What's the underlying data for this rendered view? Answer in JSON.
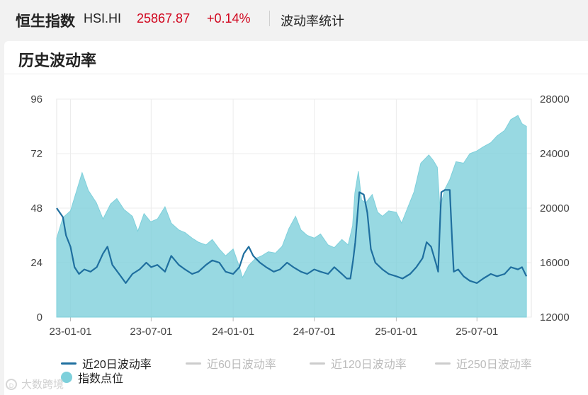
{
  "header": {
    "index_name": "恒生指数",
    "index_code": "HSI.HI",
    "price": "25867.87",
    "change": "+0.14%",
    "tab_label": "波动率统计"
  },
  "card": {
    "title": "历史波动率"
  },
  "legend": {
    "items": [
      {
        "label": "近20日波动率",
        "color": "#1f6f9f",
        "active": true
      },
      {
        "label": "近60日波动率",
        "color": "#cccccc",
        "active": false
      },
      {
        "label": "近120日波动率",
        "color": "#cccccc",
        "active": false
      },
      {
        "label": "近250日波动率",
        "color": "#cccccc",
        "active": false
      },
      {
        "label": "指数点位",
        "color": "#7ed0db",
        "active": true
      }
    ]
  },
  "watermark": {
    "text": "大数跨境"
  },
  "chart_data": {
    "type": "line",
    "x_tick_labels": [
      "23-01-01",
      "23-07-01",
      "24-01-01",
      "24-07-01",
      "25-01-01",
      "25-07-01"
    ],
    "x_ticks": [
      "2023-01-01",
      "2023-07-01",
      "2024-01-01",
      "2024-07-01",
      "2025-01-01",
      "2025-07-01"
    ],
    "xlim": [
      "2022-12-01",
      "2025-10-31"
    ],
    "y_left": {
      "ticks": [
        0,
        24,
        48,
        72,
        96
      ],
      "ylim": [
        0,
        96
      ]
    },
    "y_right": {
      "ticks": [
        12000,
        16000,
        20000,
        24000,
        28000
      ],
      "ylim": [
        12000,
        28000
      ]
    },
    "grid": true,
    "legend_position": "bottom",
    "series": [
      {
        "name": "近20日波动率",
        "axis": "left",
        "style": "line",
        "color": "#1f6f9f",
        "points": [
          [
            "2022-12-01",
            48
          ],
          [
            "2022-12-08",
            46
          ],
          [
            "2022-12-15",
            44
          ],
          [
            "2022-12-22",
            36
          ],
          [
            "2023-01-01",
            31
          ],
          [
            "2023-01-10",
            22
          ],
          [
            "2023-01-20",
            19
          ],
          [
            "2023-02-01",
            21
          ],
          [
            "2023-02-15",
            20
          ],
          [
            "2023-03-01",
            22
          ],
          [
            "2023-03-15",
            28
          ],
          [
            "2023-03-25",
            31
          ],
          [
            "2023-04-05",
            23
          ],
          [
            "2023-04-20",
            19
          ],
          [
            "2023-05-05",
            15
          ],
          [
            "2023-05-20",
            19
          ],
          [
            "2023-06-05",
            21
          ],
          [
            "2023-06-20",
            24
          ],
          [
            "2023-07-01",
            22
          ],
          [
            "2023-07-15",
            23
          ],
          [
            "2023-08-01",
            20
          ],
          [
            "2023-08-15",
            27
          ],
          [
            "2023-09-01",
            23
          ],
          [
            "2023-09-15",
            21
          ],
          [
            "2023-10-01",
            19
          ],
          [
            "2023-10-15",
            20
          ],
          [
            "2023-11-01",
            23
          ],
          [
            "2023-11-15",
            25
          ],
          [
            "2023-12-01",
            24
          ],
          [
            "2023-12-15",
            20
          ],
          [
            "2024-01-01",
            19
          ],
          [
            "2024-01-15",
            22
          ],
          [
            "2024-01-25",
            28
          ],
          [
            "2024-02-05",
            31
          ],
          [
            "2024-02-15",
            27
          ],
          [
            "2024-03-01",
            24
          ],
          [
            "2024-03-15",
            22
          ],
          [
            "2024-04-01",
            20
          ],
          [
            "2024-04-15",
            21
          ],
          [
            "2024-05-01",
            24
          ],
          [
            "2024-05-15",
            22
          ],
          [
            "2024-06-01",
            20
          ],
          [
            "2024-06-15",
            19
          ],
          [
            "2024-07-01",
            21
          ],
          [
            "2024-07-15",
            20
          ],
          [
            "2024-08-01",
            19
          ],
          [
            "2024-08-15",
            22
          ],
          [
            "2024-09-01",
            19
          ],
          [
            "2024-09-12",
            17
          ],
          [
            "2024-09-20",
            17
          ],
          [
            "2024-09-26",
            25
          ],
          [
            "2024-10-01",
            33
          ],
          [
            "2024-10-06",
            45
          ],
          [
            "2024-10-10",
            55
          ],
          [
            "2024-10-20",
            54
          ],
          [
            "2024-10-28",
            46
          ],
          [
            "2024-11-05",
            30
          ],
          [
            "2024-11-15",
            24
          ],
          [
            "2024-12-01",
            21
          ],
          [
            "2024-12-15",
            19
          ],
          [
            "2025-01-01",
            18
          ],
          [
            "2025-01-15",
            17
          ],
          [
            "2025-02-01",
            19
          ],
          [
            "2025-02-15",
            22
          ],
          [
            "2025-03-01",
            26
          ],
          [
            "2025-03-10",
            33
          ],
          [
            "2025-03-20",
            31
          ],
          [
            "2025-04-01",
            23
          ],
          [
            "2025-04-05",
            20
          ],
          [
            "2025-04-08",
            36
          ],
          [
            "2025-04-12",
            55
          ],
          [
            "2025-04-20",
            56
          ],
          [
            "2025-05-01",
            56
          ],
          [
            "2025-05-06",
            35
          ],
          [
            "2025-05-10",
            20
          ],
          [
            "2025-05-20",
            21
          ],
          [
            "2025-06-01",
            18
          ],
          [
            "2025-06-15",
            16
          ],
          [
            "2025-07-01",
            15
          ],
          [
            "2025-07-15",
            17
          ],
          [
            "2025-08-01",
            19
          ],
          [
            "2025-08-15",
            18
          ],
          [
            "2025-09-01",
            19
          ],
          [
            "2025-09-15",
            22
          ],
          [
            "2025-10-01",
            21
          ],
          [
            "2025-10-10",
            22
          ],
          [
            "2025-10-20",
            18
          ]
        ]
      },
      {
        "name": "指数点位",
        "axis": "right",
        "style": "area",
        "color": "#7ed0db",
        "points": [
          [
            "2022-12-01",
            17800
          ],
          [
            "2022-12-15",
            19300
          ],
          [
            "2023-01-01",
            19800
          ],
          [
            "2023-01-15",
            21300
          ],
          [
            "2023-01-27",
            22600
          ],
          [
            "2023-02-10",
            21300
          ],
          [
            "2023-02-28",
            20400
          ],
          [
            "2023-03-15",
            19200
          ],
          [
            "2023-04-01",
            20300
          ],
          [
            "2023-04-15",
            20700
          ],
          [
            "2023-05-01",
            19900
          ],
          [
            "2023-05-20",
            19400
          ],
          [
            "2023-06-01",
            18300
          ],
          [
            "2023-06-15",
            19600
          ],
          [
            "2023-06-30",
            19000
          ],
          [
            "2023-07-15",
            19200
          ],
          [
            "2023-08-01",
            20100
          ],
          [
            "2023-08-15",
            18900
          ],
          [
            "2023-09-01",
            18400
          ],
          [
            "2023-09-15",
            18200
          ],
          [
            "2023-10-01",
            17800
          ],
          [
            "2023-10-15",
            17500
          ],
          [
            "2023-11-01",
            17300
          ],
          [
            "2023-11-15",
            17700
          ],
          [
            "2023-12-01",
            17000
          ],
          [
            "2023-12-15",
            16500
          ],
          [
            "2024-01-01",
            17000
          ],
          [
            "2024-01-15",
            15700
          ],
          [
            "2024-01-22",
            14900
          ],
          [
            "2024-02-05",
            15800
          ],
          [
            "2024-02-20",
            16300
          ],
          [
            "2024-03-05",
            16500
          ],
          [
            "2024-03-20",
            16800
          ],
          [
            "2024-04-05",
            16700
          ],
          [
            "2024-04-20",
            17200
          ],
          [
            "2024-05-05",
            18500
          ],
          [
            "2024-05-20",
            19400
          ],
          [
            "2024-06-01",
            18400
          ],
          [
            "2024-06-15",
            18000
          ],
          [
            "2024-07-01",
            17800
          ],
          [
            "2024-07-15",
            18100
          ],
          [
            "2024-08-01",
            17300
          ],
          [
            "2024-08-15",
            17100
          ],
          [
            "2024-09-01",
            17700
          ],
          [
            "2024-09-15",
            17300
          ],
          [
            "2024-09-25",
            18700
          ],
          [
            "2024-09-30",
            21100
          ],
          [
            "2024-10-08",
            22700
          ],
          [
            "2024-10-15",
            20600
          ],
          [
            "2024-10-25",
            20400
          ],
          [
            "2024-11-08",
            21000
          ],
          [
            "2024-11-20",
            19700
          ],
          [
            "2024-12-01",
            19400
          ],
          [
            "2024-12-15",
            19800
          ],
          [
            "2025-01-01",
            19700
          ],
          [
            "2025-01-13",
            18900
          ],
          [
            "2025-01-25",
            19900
          ],
          [
            "2025-02-10",
            21200
          ],
          [
            "2025-02-25",
            23300
          ],
          [
            "2025-03-15",
            23900
          ],
          [
            "2025-03-25",
            23500
          ],
          [
            "2025-04-03",
            23000
          ],
          [
            "2025-04-09",
            20000
          ],
          [
            "2025-04-20",
            21400
          ],
          [
            "2025-05-01",
            22100
          ],
          [
            "2025-05-15",
            23400
          ],
          [
            "2025-06-01",
            23300
          ],
          [
            "2025-06-15",
            24000
          ],
          [
            "2025-07-01",
            24200
          ],
          [
            "2025-07-15",
            24500
          ],
          [
            "2025-08-01",
            24800
          ],
          [
            "2025-08-15",
            25300
          ],
          [
            "2025-09-01",
            25700
          ],
          [
            "2025-09-15",
            26500
          ],
          [
            "2025-10-01",
            26800
          ],
          [
            "2025-10-10",
            26200
          ],
          [
            "2025-10-20",
            26000
          ]
        ]
      }
    ]
  }
}
